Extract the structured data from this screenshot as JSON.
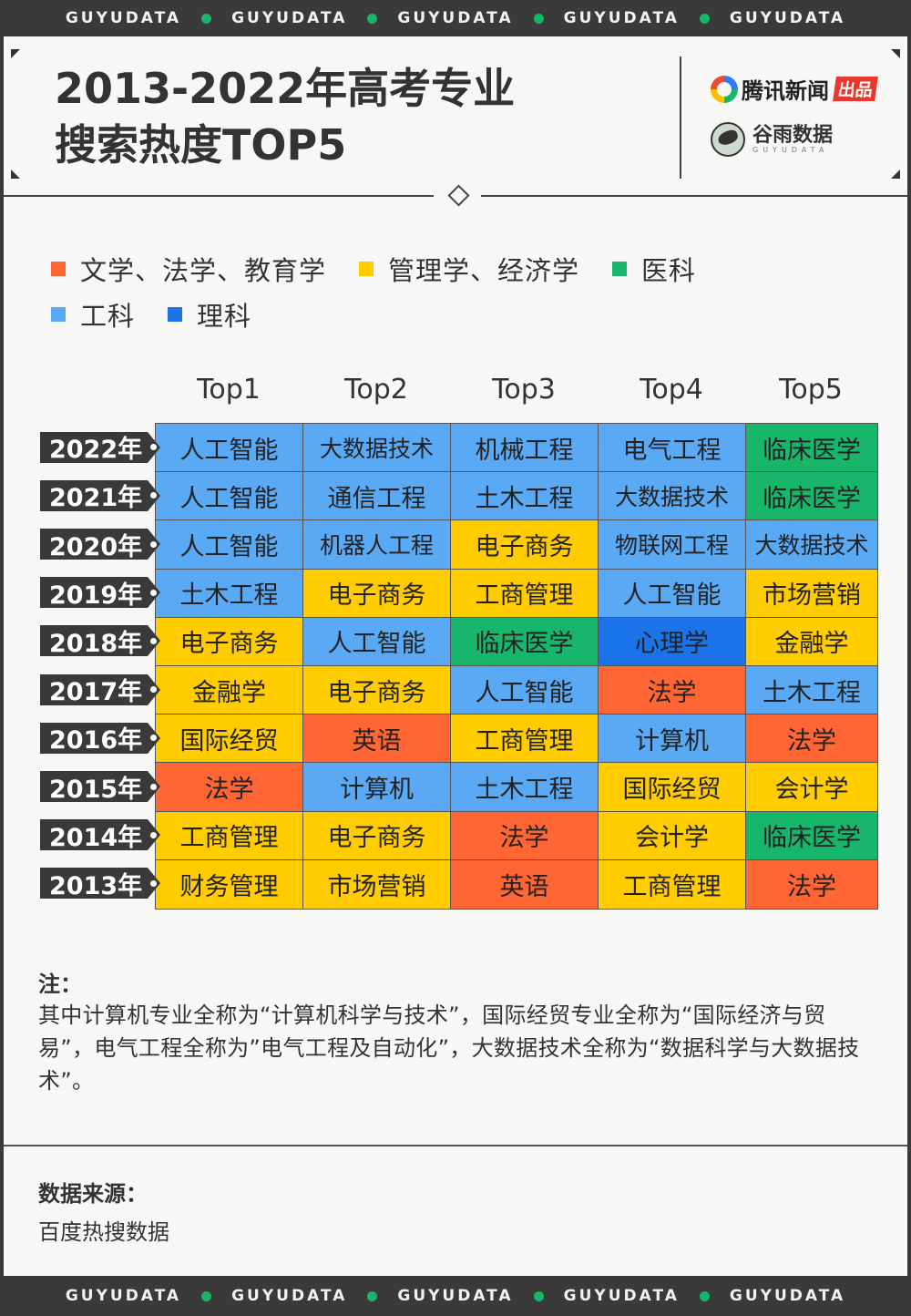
{
  "brand": "GUYUDATA",
  "colors": {
    "lit": "#ff6633",
    "mgmt": "#ffcc00",
    "med": "#18b66a",
    "eng": "#5aa9f5",
    "sci": "#1a73e8",
    "accent_dot": "#18b66a"
  },
  "header": {
    "title_line1": "2013-2022年高考专业",
    "title_line2": "搜索热度TOP5",
    "logo1_text": "腾讯新闻",
    "logo1_badge": "出品",
    "logo2_text": "谷雨数据",
    "logo2_sub": "GUYUDATA"
  },
  "legend": [
    {
      "label": "文学、法学、教育学",
      "color": "#ff6633"
    },
    {
      "label": "管理学、经济学",
      "color": "#ffcc00"
    },
    {
      "label": "医科",
      "color": "#18b66a"
    },
    {
      "label": "工科",
      "color": "#5aa9f5"
    },
    {
      "label": "理科",
      "color": "#1a73e8"
    }
  ],
  "chart_data": {
    "type": "table",
    "title": "2013-2022年高考专业搜索热度TOP5",
    "columns": [
      "Top1",
      "Top2",
      "Top3",
      "Top4",
      "Top5"
    ],
    "rows": [
      {
        "year": "2022年",
        "cells": [
          {
            "text": "人工智能",
            "cat": "eng"
          },
          {
            "text": "大数据技术",
            "cat": "eng"
          },
          {
            "text": "机械工程",
            "cat": "eng"
          },
          {
            "text": "电气工程",
            "cat": "eng"
          },
          {
            "text": "临床医学",
            "cat": "med"
          }
        ]
      },
      {
        "year": "2021年",
        "cells": [
          {
            "text": "人工智能",
            "cat": "eng"
          },
          {
            "text": "通信工程",
            "cat": "eng"
          },
          {
            "text": "土木工程",
            "cat": "eng"
          },
          {
            "text": "大数据技术",
            "cat": "eng"
          },
          {
            "text": "临床医学",
            "cat": "med"
          }
        ]
      },
      {
        "year": "2020年",
        "cells": [
          {
            "text": "人工智能",
            "cat": "eng"
          },
          {
            "text": "机器人工程",
            "cat": "eng"
          },
          {
            "text": "电子商务",
            "cat": "mgmt"
          },
          {
            "text": "物联网工程",
            "cat": "eng"
          },
          {
            "text": "大数据技术",
            "cat": "eng"
          }
        ]
      },
      {
        "year": "2019年",
        "cells": [
          {
            "text": "土木工程",
            "cat": "eng"
          },
          {
            "text": "电子商务",
            "cat": "mgmt"
          },
          {
            "text": "工商管理",
            "cat": "mgmt"
          },
          {
            "text": "人工智能",
            "cat": "eng"
          },
          {
            "text": "市场营销",
            "cat": "mgmt"
          }
        ]
      },
      {
        "year": "2018年",
        "cells": [
          {
            "text": "电子商务",
            "cat": "mgmt"
          },
          {
            "text": "人工智能",
            "cat": "eng"
          },
          {
            "text": "临床医学",
            "cat": "med"
          },
          {
            "text": "心理学",
            "cat": "sci"
          },
          {
            "text": "金融学",
            "cat": "mgmt"
          }
        ]
      },
      {
        "year": "2017年",
        "cells": [
          {
            "text": "金融学",
            "cat": "mgmt"
          },
          {
            "text": "电子商务",
            "cat": "mgmt"
          },
          {
            "text": "人工智能",
            "cat": "eng"
          },
          {
            "text": "法学",
            "cat": "lit"
          },
          {
            "text": "土木工程",
            "cat": "eng"
          }
        ]
      },
      {
        "year": "2016年",
        "cells": [
          {
            "text": "国际经贸",
            "cat": "mgmt"
          },
          {
            "text": "英语",
            "cat": "lit"
          },
          {
            "text": "工商管理",
            "cat": "mgmt"
          },
          {
            "text": "计算机",
            "cat": "eng"
          },
          {
            "text": "法学",
            "cat": "lit"
          }
        ]
      },
      {
        "year": "2015年",
        "cells": [
          {
            "text": "法学",
            "cat": "lit"
          },
          {
            "text": "计算机",
            "cat": "eng"
          },
          {
            "text": "土木工程",
            "cat": "eng"
          },
          {
            "text": "国际经贸",
            "cat": "mgmt"
          },
          {
            "text": "会计学",
            "cat": "mgmt"
          }
        ]
      },
      {
        "year": "2014年",
        "cells": [
          {
            "text": "工商管理",
            "cat": "mgmt"
          },
          {
            "text": "电子商务",
            "cat": "mgmt"
          },
          {
            "text": "法学",
            "cat": "lit"
          },
          {
            "text": "会计学",
            "cat": "mgmt"
          },
          {
            "text": "临床医学",
            "cat": "med"
          }
        ]
      },
      {
        "year": "2013年",
        "cells": [
          {
            "text": "财务管理",
            "cat": "mgmt"
          },
          {
            "text": "市场营销",
            "cat": "mgmt"
          },
          {
            "text": "英语",
            "cat": "lit"
          },
          {
            "text": "工商管理",
            "cat": "mgmt"
          },
          {
            "text": "法学",
            "cat": "lit"
          }
        ]
      }
    ]
  },
  "note": {
    "title": "注：",
    "body": "其中计算机专业全称为“计算机科学与技术”，国际经贸专业全称为“国际经济与贸易”，电气工程全称为”电气工程及自动化”，大数据技术全称为“数据科学与大数据技术”。"
  },
  "source": {
    "title": "数据来源：",
    "body": "百度热搜数据"
  }
}
